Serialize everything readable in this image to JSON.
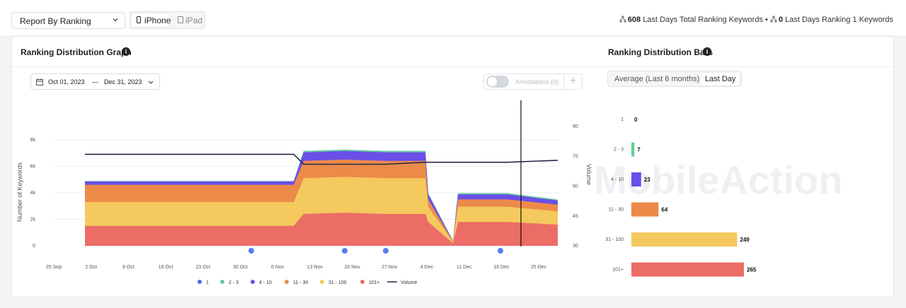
{
  "toolbar": {
    "report_select": "Report By Ranking",
    "devices": [
      "iPhone",
      "iPad"
    ],
    "active_device": "iPhone",
    "total_keywords": "608",
    "total_keywords_label": "Last Days Total Ranking Keywords",
    "separator": "•",
    "rank1_keywords": "0",
    "rank1_keywords_label": "Last Days Ranking 1 Keywords"
  },
  "graph_panel": {
    "title": "Ranking Distribution Graph",
    "date_start": "Oct 01, 2023",
    "date_sep": "—",
    "date_end": "Dec 31, 2023",
    "annotations_label": "Annotations (0)",
    "annotations_add": "+"
  },
  "bars_panel": {
    "title": "Ranking Distribution Bars",
    "tabs": [
      "Average (Last 6 months)",
      "Last Day"
    ],
    "active_tab": "Last Day",
    "watermark": "MobileAction"
  },
  "colors": {
    "1": "#4a6cf0",
    "2 - 3": "#5fd09a",
    "4 - 10": "#6a4fe8",
    "11 - 30": "#ec8a4a",
    "31 - 100": "#f4c95d",
    "101+": "#ec6c66",
    "volume": "#222a44"
  },
  "chart_data": [
    {
      "type": "area",
      "stacked": true,
      "ylabel": "Number of Keywords",
      "y2label": "Volume",
      "yticks": [
        "0",
        "2k",
        "4k",
        "6k",
        "8k"
      ],
      "y2ticks": [
        "30",
        "45",
        "60",
        "75",
        "90"
      ],
      "ylim": [
        0,
        9000
      ],
      "y2lim": [
        30,
        90
      ],
      "xticks": [
        "25 Sep",
        "2 Oct",
        "9 Oct",
        "16 Oct",
        "23 Oct",
        "30 Oct",
        "6 Nov",
        "13 Nov",
        "20 Nov",
        "27 Nov",
        "4 Dec",
        "11 Dec",
        "18 Dec",
        "25 Dec"
      ],
      "legend": [
        "1",
        "2 - 3",
        "4 - 10",
        "11 - 30",
        "31 - 100",
        "101+",
        "Volume"
      ],
      "legend_position": "bottom",
      "x": [
        "Oct 01",
        "Oct 15",
        "Oct 31",
        "Nov 10",
        "Nov 13",
        "Nov 20",
        "Nov 27",
        "Dec 03",
        "Dec 05",
        "Dec 10",
        "Dec 12",
        "Dec 20",
        "Dec 31"
      ],
      "series": [
        {
          "name": "1",
          "values": [
            0,
            0,
            0,
            0,
            0,
            0,
            0,
            0,
            0,
            0,
            0,
            0,
            0
          ]
        },
        {
          "name": "2 - 3",
          "values": [
            30,
            30,
            30,
            30,
            100,
            100,
            100,
            100,
            80,
            20,
            80,
            80,
            70
          ]
        },
        {
          "name": "4 - 10",
          "values": [
            250,
            250,
            250,
            250,
            650,
            650,
            650,
            650,
            380,
            20,
            380,
            380,
            320
          ]
        },
        {
          "name": "11 - 30",
          "values": [
            1300,
            1300,
            1300,
            1300,
            1300,
            1300,
            1300,
            1300,
            550,
            40,
            550,
            550,
            500
          ]
        },
        {
          "name": "31 - 100",
          "values": [
            1800,
            1800,
            1800,
            1800,
            2700,
            2700,
            2700,
            2700,
            1150,
            100,
            1150,
            1150,
            1000
          ]
        },
        {
          "name": "101+",
          "values": [
            1500,
            1500,
            1500,
            1500,
            2400,
            2500,
            2400,
            2400,
            1800,
            200,
            1800,
            1800,
            1600
          ]
        }
      ],
      "volume": [
        76,
        76,
        76,
        76,
        71,
        71,
        71,
        72,
        72,
        72,
        72,
        72,
        73
      ]
    },
    {
      "type": "bar",
      "orientation": "horizontal",
      "categories": [
        "1",
        "2 - 3",
        "4 - 10",
        "11 - 30",
        "31 - 100",
        "101+"
      ],
      "values": [
        0,
        7,
        23,
        64,
        249,
        265
      ]
    }
  ]
}
